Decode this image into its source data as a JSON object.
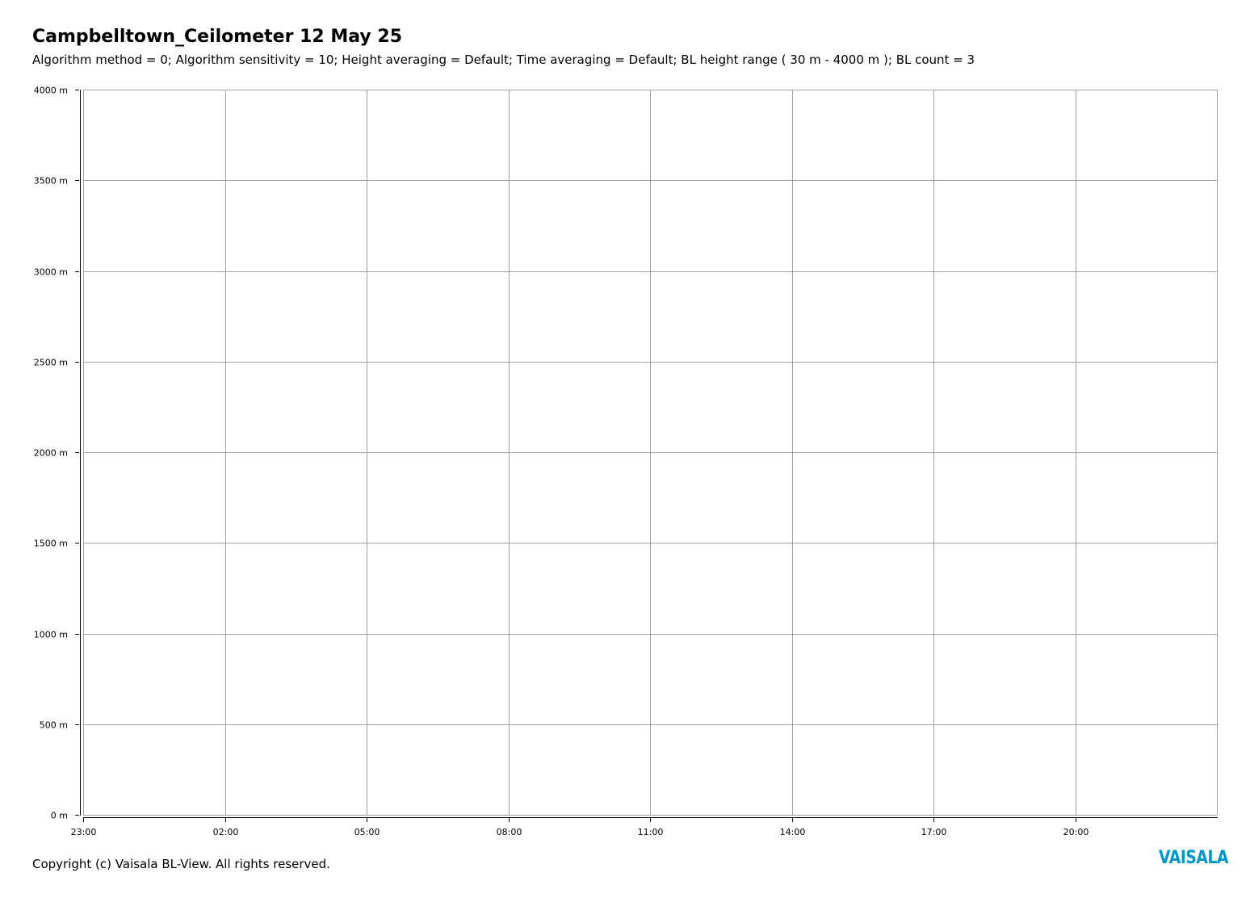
{
  "header": {
    "title": "Campbelltown_Ceilometer 12 May 25",
    "subtitle": "Algorithm method = 0; Algorithm sensitivity = 10; Height averaging = Default; Time averaging = Default; BL height range ( 30 m - 4000 m ); BL count = 3"
  },
  "footer": {
    "copyright": "Copyright (c) Vaisala BL-View. All rights reserved.",
    "logo_text": "VAISALA"
  },
  "colors": {
    "grid": "#a0a0a0",
    "axis": "#000000",
    "logo": "#0097c9"
  },
  "chart_data": {
    "type": "line",
    "title": "Campbelltown_Ceilometer 12 May 25",
    "xlabel": "",
    "ylabel": "",
    "y_ticks": [
      "0 m",
      "500 m",
      "1000 m",
      "1500 m",
      "2000 m",
      "2500 m",
      "3000 m",
      "3500 m",
      "4000 m"
    ],
    "y_tick_values": [
      0,
      500,
      1000,
      1500,
      2000,
      2500,
      3000,
      3500,
      4000
    ],
    "ylim": [
      0,
      4000
    ],
    "x_ticks": [
      "23:00",
      "02:00",
      "05:00",
      "08:00",
      "11:00",
      "14:00",
      "17:00",
      "20:00"
    ],
    "x_tick_hours": [
      0,
      3,
      6,
      9,
      12,
      15,
      18,
      21
    ],
    "xlim_hours": [
      0,
      24
    ],
    "grid": true,
    "series": []
  }
}
